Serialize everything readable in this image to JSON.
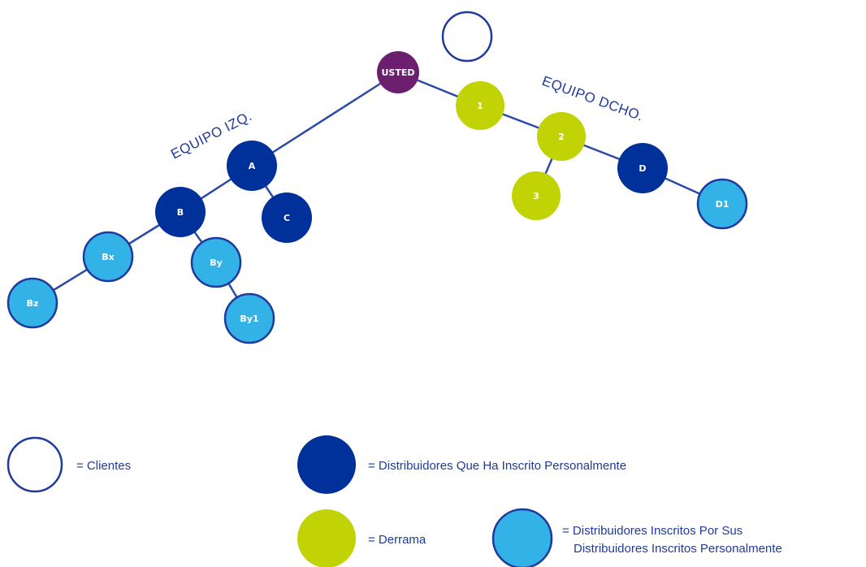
{
  "colors": {
    "line": "#2b4aa8",
    "usted": "#6b1f6e",
    "personal": "#00309a",
    "spillover": "#c1d305",
    "downline": "#33b2e8",
    "client_fill": "#ffffff",
    "border": "#1e3a9c",
    "text": "#1e3a9c"
  },
  "teams": {
    "left": "EQUIPO IZQ.",
    "right": "EQUIPO DCHO."
  },
  "nodes": [
    {
      "id": "usted",
      "label": "USTED",
      "kind": "usted"
    },
    {
      "id": "client_top",
      "label": "",
      "kind": "client"
    },
    {
      "id": "A",
      "label": "A",
      "kind": "personal"
    },
    {
      "id": "B",
      "label": "B",
      "kind": "personal"
    },
    {
      "id": "C",
      "label": "C",
      "kind": "personal"
    },
    {
      "id": "Bx",
      "label": "Bx",
      "kind": "downline"
    },
    {
      "id": "By",
      "label": "By",
      "kind": "downline"
    },
    {
      "id": "Bz",
      "label": "Bz",
      "kind": "downline"
    },
    {
      "id": "By1",
      "label": "By1",
      "kind": "downline"
    },
    {
      "id": "n1",
      "label": "1",
      "kind": "spillover"
    },
    {
      "id": "n2",
      "label": "2",
      "kind": "spillover"
    },
    {
      "id": "n3",
      "label": "3",
      "kind": "spillover"
    },
    {
      "id": "D",
      "label": "D",
      "kind": "personal"
    },
    {
      "id": "D1",
      "label": "D1",
      "kind": "downline"
    }
  ],
  "edges": [
    [
      "usted",
      "A"
    ],
    [
      "A",
      "B"
    ],
    [
      "A",
      "C"
    ],
    [
      "B",
      "Bx"
    ],
    [
      "Bx",
      "Bz"
    ],
    [
      "B",
      "By"
    ],
    [
      "By",
      "By1"
    ],
    [
      "usted",
      "n1"
    ],
    [
      "n1",
      "n2"
    ],
    [
      "n2",
      "n3"
    ],
    [
      "n2",
      "D"
    ],
    [
      "D",
      "D1"
    ]
  ],
  "legend": {
    "clients": "= Clientes",
    "personal": "= Distribuidores Que Ha Inscrito Personalmente",
    "spillover": "= Derrama",
    "downline_line1": "= Distribuidores Inscritos Por Sus",
    "downline_line2": "Distribuidores Inscritos Personalmente"
  }
}
